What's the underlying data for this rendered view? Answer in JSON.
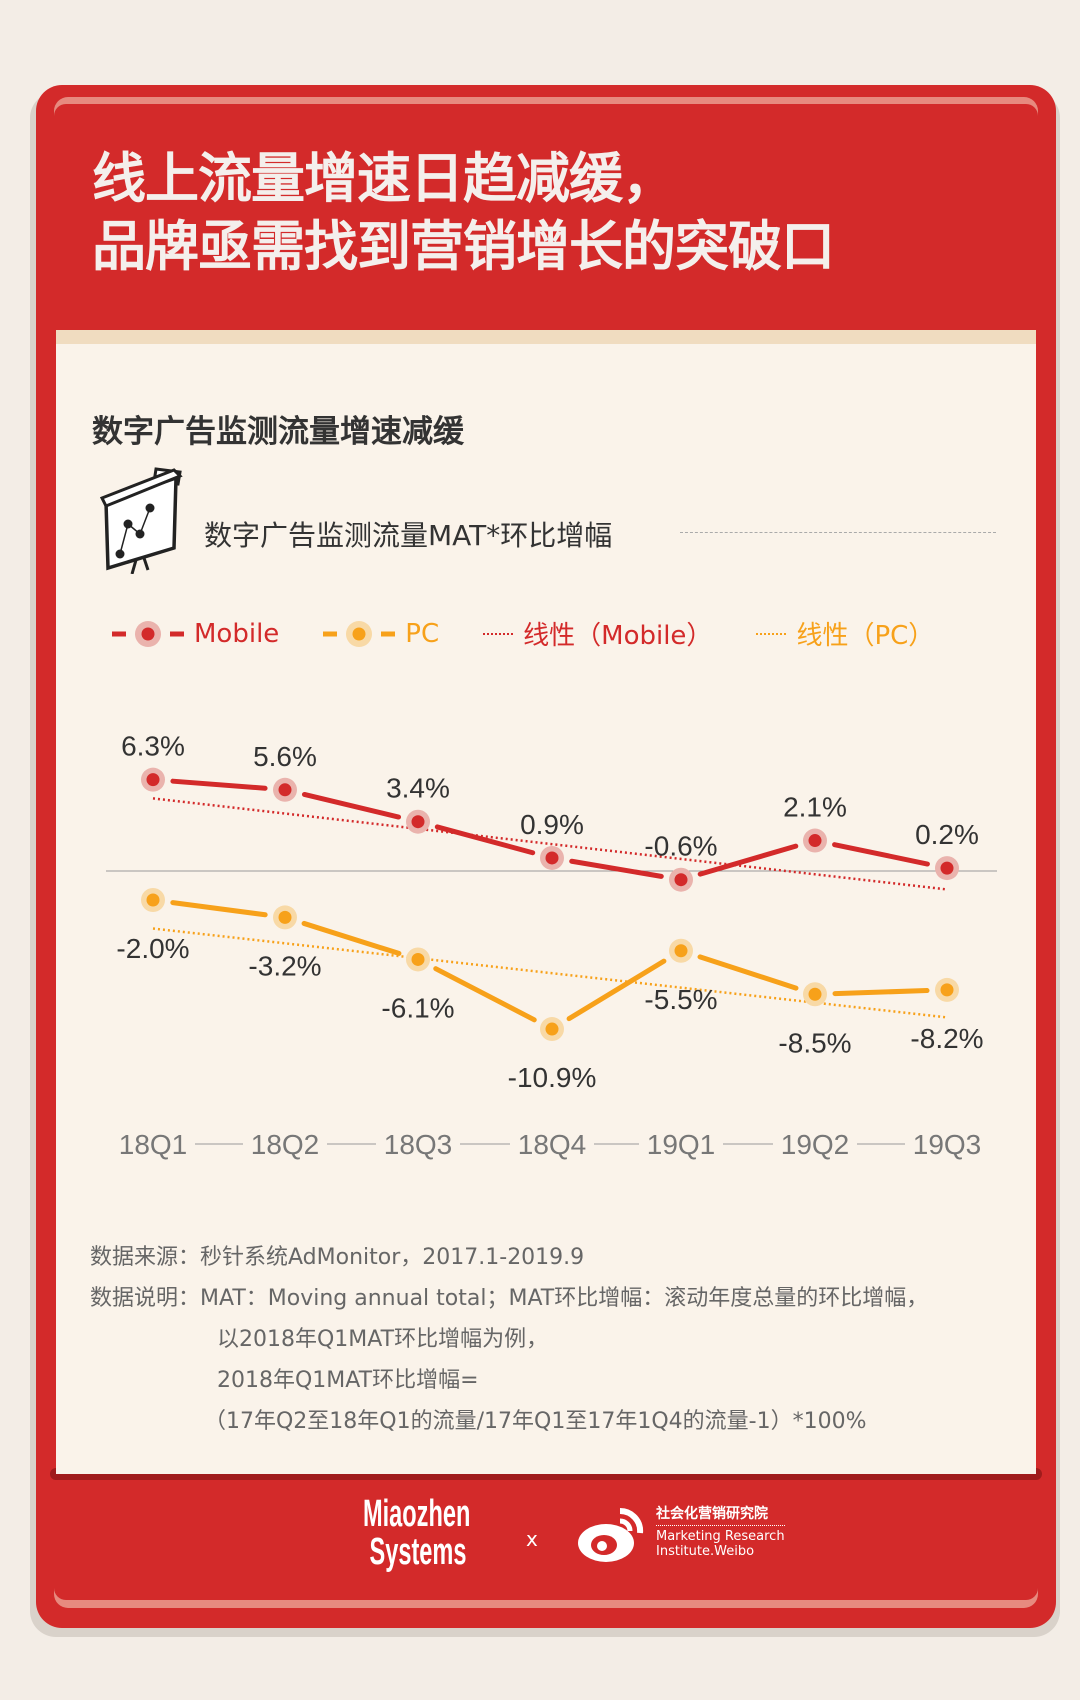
{
  "header": {
    "title_line1": "线上流量增速日趋减缓，",
    "title_line2": "品牌亟需找到营销增长的突破口"
  },
  "section": {
    "subtitle": "数字广告监测流量增速减缓",
    "icon": "presentation-chart-icon"
  },
  "chart_data": {
    "type": "line",
    "title": "数字广告监测流量MAT*环比增幅",
    "categories": [
      "18Q1",
      "18Q2",
      "18Q3",
      "18Q4",
      "19Q1",
      "19Q2",
      "19Q3"
    ],
    "series": [
      {
        "name": "Mobile",
        "values": [
          6.3,
          5.6,
          3.4,
          0.9,
          -0.6,
          2.1,
          0.2
        ],
        "labels": [
          "6.3%",
          "5.6%",
          "3.4%",
          "0.9%",
          "-0.6%",
          "2.1%",
          "0.2%"
        ],
        "color": "#d32a2a",
        "halo": "#eab3ad"
      },
      {
        "name": "PC",
        "values": [
          -2.0,
          -3.2,
          -6.1,
          -10.9,
          -5.5,
          -8.5,
          -8.2
        ],
        "labels": [
          "-2.0%",
          "-3.2%",
          "-6.1%",
          "-10.9%",
          "-5.5%",
          "-8.5%",
          "-8.2%"
        ],
        "color": "#f7a11a",
        "halo": "#f8d9a6"
      }
    ],
    "trendlines": [
      {
        "name": "线性（Mobile）",
        "of": "Mobile",
        "style": "dotted"
      },
      {
        "name": "线性（PC）",
        "of": "PC",
        "style": "dotted"
      }
    ],
    "legend_position": "top-left",
    "zero_line": true,
    "grid": false
  },
  "notes": {
    "source_label": "数据来源：",
    "source": "秒针系统AdMonitor，2017.1-2019.9",
    "desc_label": "数据说明：",
    "desc1": "MAT：Moving annual total；MAT环比增幅：滚动年度总量的环比增幅，",
    "desc2": "以2018年Q1MAT环比增幅为例，",
    "desc3": "2018年Q1MAT环比增幅=",
    "desc4": "（17年Q2至18年Q1的流量/17年Q1至17年1Q4的流量-1）*100%"
  },
  "footer": {
    "logo1": "Miaozhen Systems",
    "x": "x",
    "logo2_cn": "社会化营销研究院",
    "logo2_en1": "Marketing Research",
    "logo2_en2": "Institute.Weibo"
  }
}
